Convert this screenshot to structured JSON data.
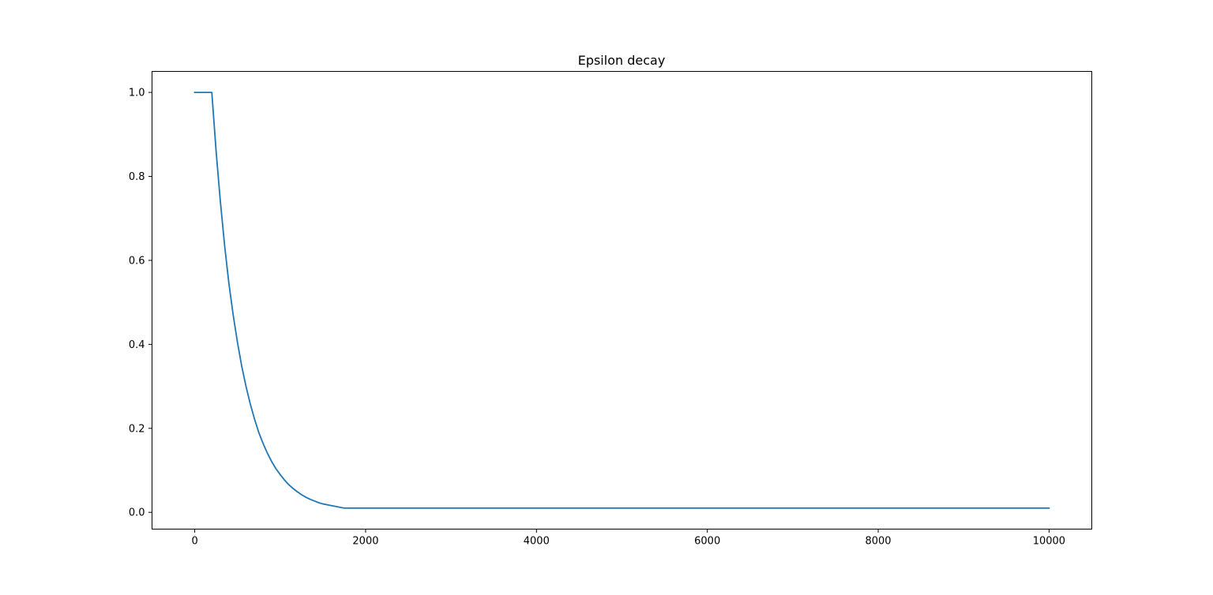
{
  "chart_data": {
    "type": "line",
    "title": "Epsilon decay",
    "xlabel": "",
    "ylabel": "",
    "xlim": [
      -500,
      10500
    ],
    "ylim": [
      -0.04,
      1.05
    ],
    "xticks": [
      0,
      2000,
      4000,
      6000,
      8000,
      10000
    ],
    "xtick_labels": [
      "0",
      "2000",
      "4000",
      "6000",
      "8000",
      "10000"
    ],
    "yticks": [
      0.0,
      0.2,
      0.4,
      0.6,
      0.8,
      1.0
    ],
    "ytick_labels": [
      "0.0",
      "0.2",
      "0.4",
      "0.6",
      "0.8",
      "1.0"
    ],
    "grid": false,
    "series": [
      {
        "color": "#1f77b4",
        "x": [
          0,
          200,
          250,
          300,
          350,
          400,
          450,
          500,
          550,
          600,
          650,
          700,
          750,
          800,
          850,
          900,
          950,
          1000,
          1050,
          1100,
          1150,
          1200,
          1250,
          1300,
          1350,
          1400,
          1450,
          1500,
          1550,
          1600,
          1650,
          1700,
          1750,
          2000,
          3000,
          4000,
          5000,
          6000,
          7000,
          8000,
          9000,
          10000
        ],
        "y": [
          1.0,
          1.0,
          0.86,
          0.74,
          0.635,
          0.545,
          0.47,
          0.405,
          0.348,
          0.3,
          0.258,
          0.222,
          0.19,
          0.164,
          0.141,
          0.121,
          0.104,
          0.09,
          0.077,
          0.066,
          0.057,
          0.049,
          0.042,
          0.036,
          0.031,
          0.027,
          0.023,
          0.02,
          0.018,
          0.016,
          0.014,
          0.012,
          0.01,
          0.01,
          0.01,
          0.01,
          0.01,
          0.01,
          0.01,
          0.01,
          0.01,
          0.01
        ]
      }
    ]
  }
}
